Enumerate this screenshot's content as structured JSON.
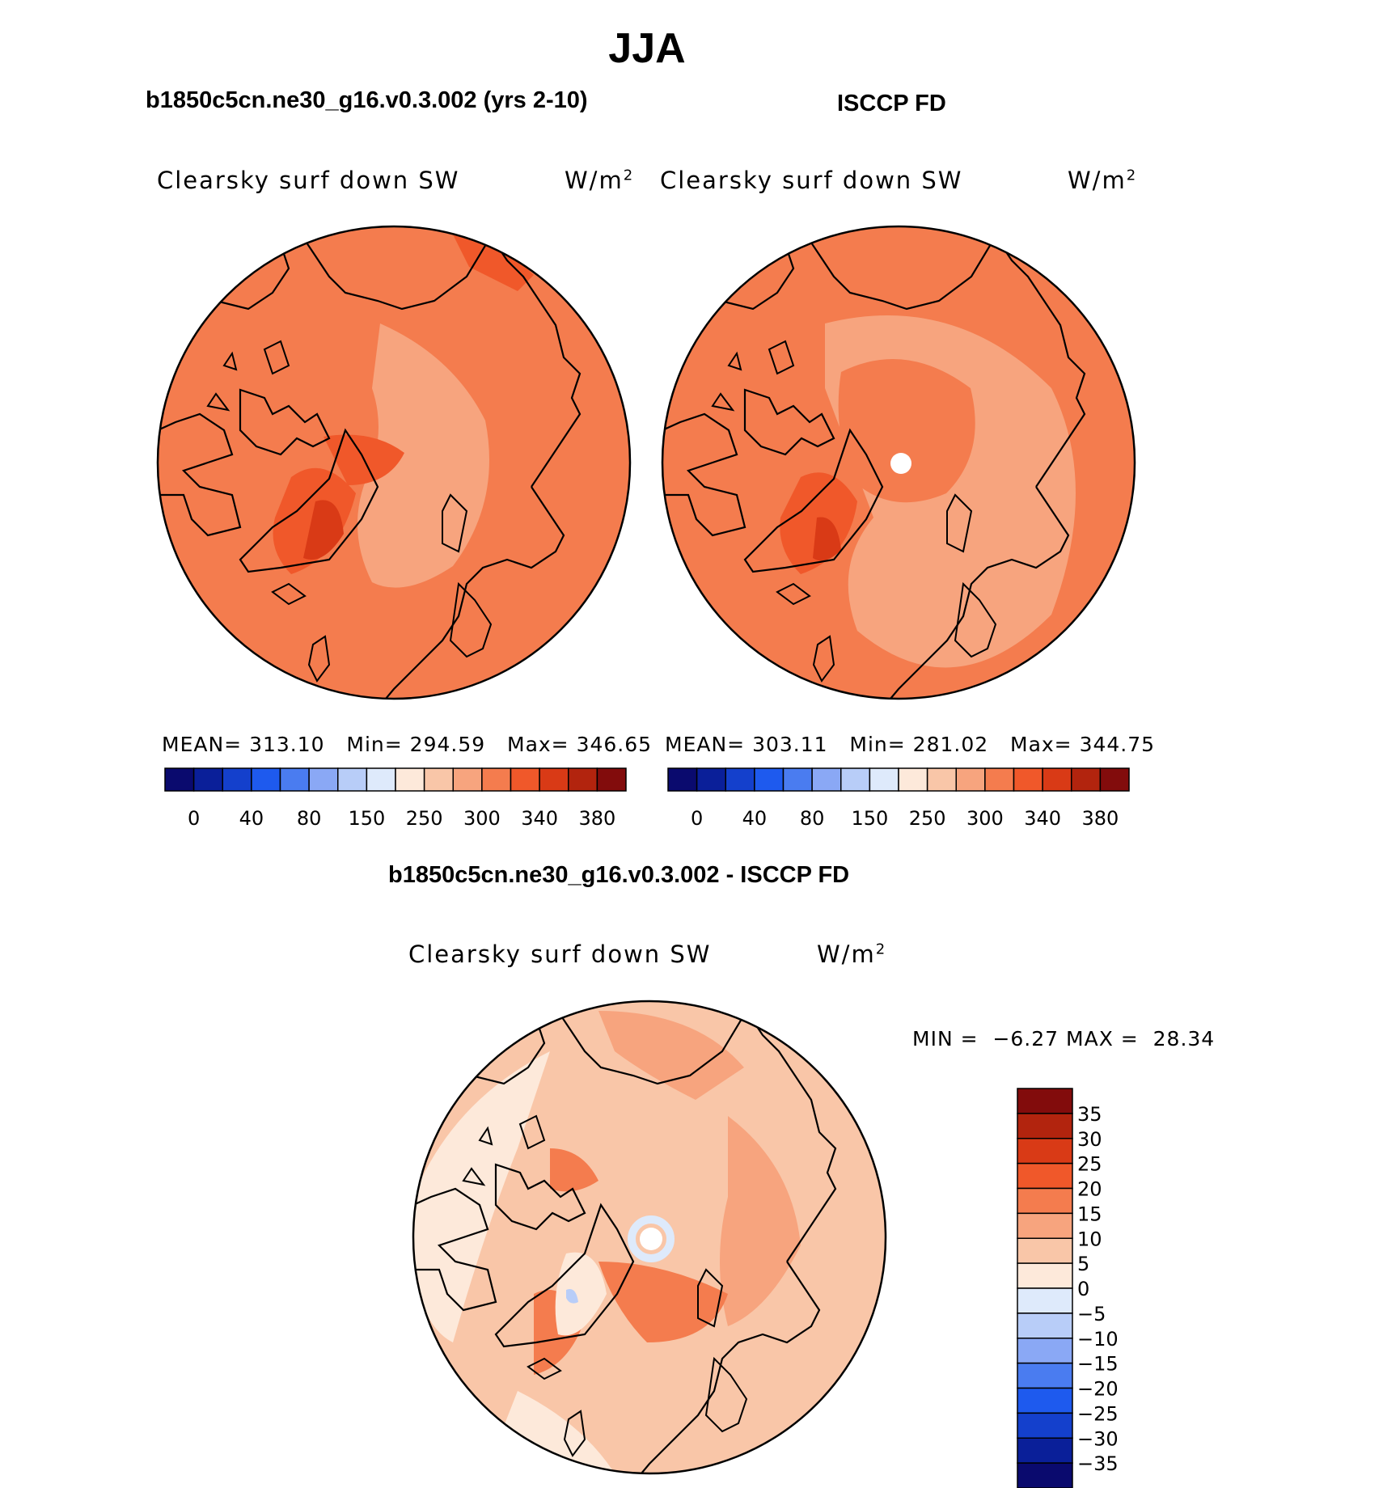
{
  "figure": {
    "title": "JJA",
    "left_case_title": "b1850c5cn.ne30_g16.v0.3.002 (yrs 2-10)",
    "right_case_title": "ISCCP FD",
    "diff_title": "b1850c5cn.ne30_g16.v0.3.002 - ISCCP FD"
  },
  "panels": {
    "model": {
      "variable": "Clearsky surf down SW",
      "units": "W/m",
      "units_exp": "2",
      "stats": {
        "mean_label": "MEAN=",
        "mean": "313.10",
        "min_label": "Min=",
        "min": "294.59",
        "max_label": "Max=",
        "max": "346.65"
      }
    },
    "obs": {
      "variable": "Clearsky surf down SW",
      "units": "W/m",
      "units_exp": "2",
      "stats": {
        "mean_label": "MEAN=",
        "mean": "303.11",
        "min_label": "Min=",
        "min": "281.02",
        "max_label": "Max=",
        "max": "344.75"
      }
    },
    "diff": {
      "variable": "Clearsky surf down SW",
      "units": "W/m",
      "units_exp": "2",
      "stats": {
        "min_label": "MIN =",
        "min": "−6.27",
        "max_label": "MAX =",
        "max": "28.34"
      }
    }
  },
  "colorbar_abs": {
    "colors": [
      "#0a0a6e",
      "#0a1f99",
      "#1440cc",
      "#1e5aee",
      "#4a7cf0",
      "#8aa8f5",
      "#b8cdf8",
      "#deeafb",
      "#fde9da",
      "#f9c6a8",
      "#f7a47e",
      "#f47c4e",
      "#f0582a",
      "#d93a16",
      "#b2240e",
      "#820c0c"
    ],
    "tick_labels": [
      "0",
      "40",
      "80",
      "150",
      "250",
      "300",
      "340",
      "380"
    ]
  },
  "colorbar_diff": {
    "colors": [
      "#0a0a6e",
      "#0a1f99",
      "#1440cc",
      "#1e5aee",
      "#4a7cf0",
      "#8aa8f5",
      "#b8cdf8",
      "#deeafb",
      "#fde9da",
      "#f9c6a8",
      "#f7a47e",
      "#f47c4e",
      "#f0582a",
      "#d93a16",
      "#b2240e",
      "#820c0c"
    ],
    "tick_labels": [
      "35",
      "30",
      "25",
      "20",
      "15",
      "10",
      "5",
      "0",
      "−5",
      "−10",
      "−15",
      "−20",
      "−25",
      "−30",
      "−35"
    ]
  }
}
